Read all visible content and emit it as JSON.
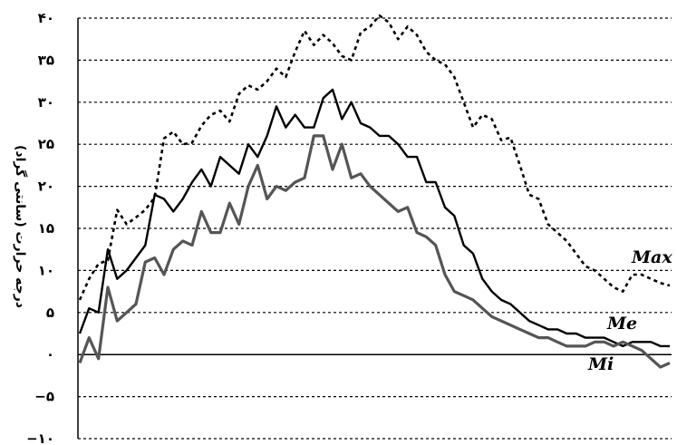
{
  "chart_data": {
    "type": "line",
    "ylabel": "درجه حرارت (سانتی گراد)",
    "ylim": [
      -10,
      40
    ],
    "y_ticks": [
      {
        "value": 40,
        "label": "۴۰"
      },
      {
        "value": 35,
        "label": "۳۵"
      },
      {
        "value": 30,
        "label": "۳۰"
      },
      {
        "value": 25,
        "label": "۲۵"
      },
      {
        "value": 20,
        "label": "۲۰"
      },
      {
        "value": 15,
        "label": "۱۵"
      },
      {
        "value": 10,
        "label": "۱۰"
      },
      {
        "value": 5,
        "label": "۵"
      },
      {
        "value": 0,
        "label": "۰"
      },
      {
        "value": -5,
        "label": "−۵"
      },
      {
        "value": -10,
        "label": "−۱۰"
      }
    ],
    "grid": true,
    "x": [
      1,
      2,
      3,
      4,
      5,
      6,
      7,
      8,
      9,
      10,
      11,
      12,
      13,
      14,
      15,
      16,
      17,
      18,
      19,
      20,
      21,
      22,
      23,
      24,
      25,
      26,
      27,
      28,
      29,
      30,
      31,
      32,
      33,
      34,
      35,
      36,
      37,
      38,
      39,
      40,
      41,
      42,
      43,
      44,
      45,
      46,
      47,
      48,
      49,
      50,
      51,
      52,
      53,
      54,
      55,
      56,
      57,
      58,
      59,
      60,
      61,
      62,
      63,
      64
    ],
    "series": [
      {
        "name": "Max",
        "color": "#000000",
        "style": "dotted",
        "values": [
          6.5,
          9.0,
          10.8,
          11.2,
          17.2,
          15.5,
          16.3,
          17.2,
          18.7,
          25.7,
          26.5,
          25.0,
          25.2,
          27.2,
          28.5,
          29.0,
          27.7,
          31.0,
          32.0,
          31.5,
          32.5,
          34.0,
          33.0,
          36.0,
          38.5,
          36.8,
          38.0,
          37.0,
          35.5,
          35.0,
          38.3,
          39.0,
          40.3,
          39.5,
          37.5,
          39.0,
          38.0,
          36.0,
          35.0,
          34.5,
          33.0,
          30.0,
          27.0,
          28.5,
          28.0,
          25.5,
          25.8,
          22.5,
          19.0,
          18.5,
          15.5,
          14.5,
          13.5,
          12.0,
          10.5,
          10.0,
          9.0,
          8.0,
          7.5,
          9.5,
          9.5,
          9.0,
          8.5,
          8.2
        ]
      },
      {
        "name": "Me",
        "color": "#000000",
        "style": "solid",
        "values": [
          2.5,
          5.5,
          5.0,
          12.5,
          9.0,
          10.0,
          11.5,
          13.0,
          19.0,
          18.5,
          17.0,
          18.5,
          20.5,
          22.0,
          20.0,
          23.5,
          22.5,
          21.5,
          25.0,
          23.5,
          26.0,
          29.5,
          27.0,
          28.5,
          27.0,
          27.0,
          30.5,
          31.5,
          28.0,
          30.0,
          27.5,
          27.0,
          26.0,
          26.0,
          25.0,
          23.5,
          23.5,
          20.5,
          20.5,
          17.5,
          16.5,
          13.0,
          12.0,
          9.0,
          7.5,
          6.5,
          6.0,
          5.0,
          4.0,
          3.5,
          3.0,
          3.0,
          2.5,
          2.5,
          2.0,
          2.0,
          2.0,
          1.5,
          1.0,
          1.5,
          1.5,
          1.5,
          1.0,
          1.0
        ]
      },
      {
        "name": "Mi",
        "color": "#555555",
        "style": "solid",
        "values": [
          -1.0,
          2.0,
          -0.5,
          8.0,
          4.0,
          5.0,
          6.0,
          11.0,
          11.5,
          9.5,
          12.5,
          13.5,
          13.0,
          17.0,
          14.5,
          14.5,
          18.0,
          15.5,
          20.0,
          22.5,
          18.5,
          20.0,
          19.5,
          20.5,
          21.0,
          26.0,
          26.0,
          22.0,
          25.0,
          21.0,
          21.5,
          20.0,
          19.0,
          18.0,
          17.0,
          17.5,
          14.5,
          14.0,
          13.0,
          9.5,
          7.5,
          7.0,
          6.5,
          5.5,
          4.5,
          4.0,
          3.5,
          3.0,
          2.5,
          2.0,
          2.0,
          1.5,
          1.0,
          1.0,
          1.0,
          1.5,
          1.5,
          1.0,
          1.5,
          1.0,
          0.5,
          -0.5,
          -1.5,
          -1.0
        ]
      }
    ],
    "series_labels": [
      {
        "series": "Max",
        "text": "Max"
      },
      {
        "series": "Me",
        "text": "Me"
      },
      {
        "series": "Mi",
        "text": "Mi"
      }
    ]
  }
}
